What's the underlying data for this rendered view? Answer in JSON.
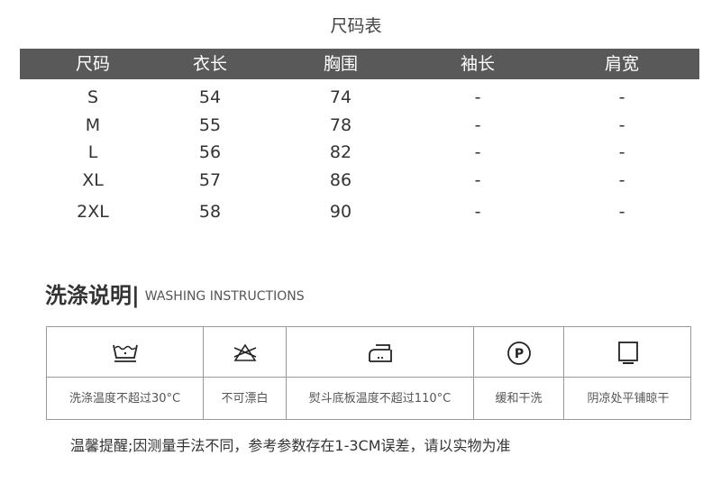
{
  "size_chart": {
    "title": "尺码表",
    "headers": [
      "尺码",
      "衣长",
      "胸围",
      "袖长",
      "肩宽"
    ],
    "header_bg": "#595959",
    "rows": [
      [
        "S",
        "54",
        "74",
        "-",
        "-"
      ],
      [
        "M",
        "55",
        "78",
        "-",
        "-"
      ],
      [
        "L",
        "56",
        "82",
        "-",
        "-"
      ],
      [
        "XL",
        "57",
        "86",
        "-",
        "-"
      ],
      [
        "2XL",
        "58",
        "90",
        "-",
        "-"
      ]
    ]
  },
  "washing": {
    "title": "洗涤说明|",
    "subtitle": "WASHING INSTRUCTIONS",
    "items": [
      {
        "icon": "wash-30-icon",
        "label": "洗涤温度不超过30°C"
      },
      {
        "icon": "no-bleach-icon",
        "label": "不可漂白"
      },
      {
        "icon": "iron-low-icon",
        "label": "熨斗底板温度不超过110°C"
      },
      {
        "icon": "dry-clean-p-icon",
        "label": "缓和干洗"
      },
      {
        "icon": "dry-flat-shade-icon",
        "label": "阴凉处平铺晾干"
      }
    ]
  },
  "tip": "温馨提醒;因测量手法不同，参考参数存在1-3CM误差，请以实物为准"
}
